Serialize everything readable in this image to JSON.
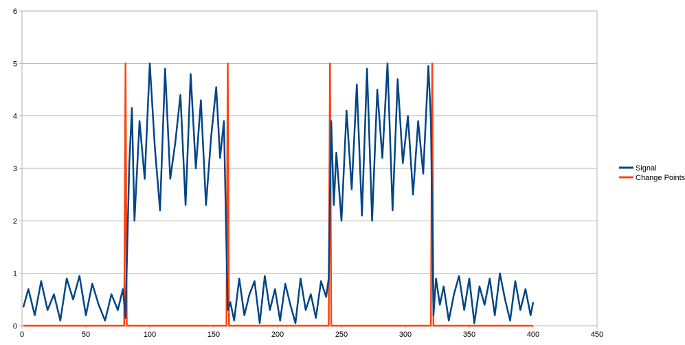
{
  "chart_data": {
    "type": "line",
    "title": "",
    "xlabel": "",
    "ylabel": "",
    "xlim": [
      0,
      450
    ],
    "ylim": [
      0,
      6
    ],
    "x_ticks": [
      0,
      50,
      100,
      150,
      200,
      250,
      300,
      350,
      400,
      450
    ],
    "y_ticks": [
      0,
      1,
      2,
      3,
      4,
      5,
      6
    ],
    "grid": "horizontal",
    "legend_position": "right",
    "series": [
      {
        "name": "Signal",
        "color": "#004586",
        "x": [
          1,
          5,
          10,
          15,
          20,
          25,
          30,
          35,
          40,
          45,
          50,
          55,
          60,
          65,
          70,
          75,
          79,
          81,
          84,
          86,
          88,
          92,
          96,
          100,
          104,
          108,
          112,
          116,
          120,
          124,
          128,
          132,
          136,
          140,
          144,
          148,
          152,
          155,
          158,
          161,
          163,
          166,
          170,
          174,
          178,
          182,
          186,
          190,
          194,
          198,
          202,
          206,
          210,
          214,
          218,
          222,
          226,
          230,
          234,
          238,
          240,
          242,
          244,
          246,
          250,
          254,
          258,
          262,
          266,
          270,
          274,
          278,
          282,
          286,
          290,
          294,
          298,
          302,
          306,
          310,
          314,
          318,
          320,
          322,
          324,
          327,
          330,
          334,
          338,
          342,
          346,
          350,
          354,
          358,
          362,
          366,
          370,
          374,
          378,
          382,
          386,
          390,
          394,
          398,
          400
        ],
        "values": [
          0.35,
          0.7,
          0.2,
          0.85,
          0.3,
          0.6,
          0.1,
          0.9,
          0.5,
          0.95,
          0.2,
          0.8,
          0.4,
          0.1,
          0.6,
          0.3,
          0.7,
          0.15,
          3.1,
          4.15,
          2.0,
          3.9,
          2.8,
          5.0,
          3.4,
          2.2,
          4.9,
          2.8,
          3.5,
          4.4,
          2.3,
          4.8,
          3.0,
          4.3,
          2.3,
          3.6,
          4.55,
          3.2,
          3.9,
          0.3,
          0.45,
          0.1,
          0.9,
          0.2,
          0.6,
          0.85,
          0.05,
          0.95,
          0.3,
          0.7,
          0.1,
          0.8,
          0.4,
          0.05,
          0.9,
          0.3,
          0.6,
          0.15,
          0.85,
          0.55,
          0.9,
          3.9,
          2.3,
          3.3,
          2.0,
          4.1,
          2.6,
          4.6,
          2.1,
          4.9,
          2.0,
          4.5,
          3.2,
          5.0,
          2.2,
          4.7,
          3.1,
          4.0,
          2.5,
          3.9,
          2.9,
          4.95,
          3.9,
          0.2,
          0.9,
          0.4,
          0.75,
          0.1,
          0.6,
          0.95,
          0.3,
          0.9,
          0.05,
          0.75,
          0.4,
          0.9,
          0.2,
          1.0,
          0.5,
          0.1,
          0.85,
          0.3,
          0.7,
          0.2,
          0.45
        ]
      },
      {
        "name": "Change Points",
        "color": "#ff420e",
        "x": [
          1,
          80,
          81,
          82,
          160,
          161,
          162,
          240,
          241,
          242,
          320,
          321,
          322,
          400
        ],
        "values": [
          0,
          0,
          5,
          0,
          0,
          5,
          0,
          0,
          5,
          0,
          0,
          5,
          0,
          0
        ]
      }
    ]
  }
}
